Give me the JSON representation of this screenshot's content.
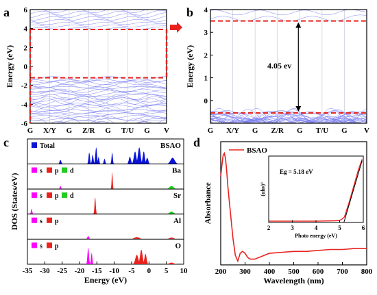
{
  "chart_data": [
    {
      "panel": "a",
      "type": "line",
      "ylabel": "Energy (eV)",
      "ylim": [
        -6,
        6
      ],
      "yticks": [
        -6,
        -4,
        -2,
        0,
        2,
        4,
        6
      ],
      "xticks": [
        "G",
        "X/Y",
        "G",
        "Z/R",
        "G",
        "T/U",
        "G",
        "V"
      ],
      "grid": false,
      "reference_lines": [
        {
          "name": "CBM",
          "y": 3.9,
          "color": "#e8231f",
          "style": "dashed"
        },
        {
          "name": "VBM",
          "y": -1.2,
          "color": "#e8231f",
          "style": "dashed"
        }
      ],
      "band_color": "#7b7ff2",
      "conduction_band_minimum": 3.9,
      "valence_band_maximum": -1.2,
      "arrow_color": "#e8231f"
    },
    {
      "panel": "b",
      "type": "line",
      "ylabel": "Energy (eV)",
      "ylim": [
        -1,
        4
      ],
      "yticks": [
        0,
        1,
        2,
        3,
        4
      ],
      "xticks": [
        "G",
        "X/Y",
        "G",
        "Z/R",
        "G",
        "T/U",
        "G",
        "V"
      ],
      "annotation": "4.05 ev",
      "reference_lines": [
        {
          "name": "CBM",
          "y": 3.5,
          "color": "#e8231f",
          "style": "dashed"
        },
        {
          "name": "VBM",
          "y": -0.55,
          "color": "#e8231f",
          "style": "dashed"
        }
      ],
      "band_color": "#7b7ff2",
      "band_gap": 4.05
    },
    {
      "panel": "c",
      "type": "area",
      "ylabel": "DOS (States/eV)",
      "xlabel": "Energy (eV)",
      "xlim": [
        -35,
        10
      ],
      "xticks": [
        -35,
        -30,
        -25,
        -20,
        -15,
        -10,
        -5,
        0,
        5,
        10
      ],
      "subpanels": [
        {
          "label": "BSAO",
          "legend": [
            {
              "name": "Total",
              "color": "#0a14d8"
            }
          ],
          "peaks": [
            {
              "x": -25.5,
              "h": 0.2,
              "w": 0.4,
              "c": "#0a14d8"
            },
            {
              "x": -17.2,
              "h": 0.55,
              "w": 0.35,
              "c": "#0a14d8"
            },
            {
              "x": -16.2,
              "h": 0.45,
              "w": 0.35,
              "c": "#0a14d8"
            },
            {
              "x": -15.2,
              "h": 0.8,
              "w": 0.4,
              "c": "#0a14d8"
            },
            {
              "x": -14.5,
              "h": 0.35,
              "w": 0.3,
              "c": "#0a14d8"
            },
            {
              "x": -12.8,
              "h": 0.25,
              "w": 0.35,
              "c": "#0a14d8"
            },
            {
              "x": -10.6,
              "h": 0.55,
              "w": 0.3,
              "c": "#0a14d8"
            },
            {
              "x": -5.5,
              "h": 0.35,
              "w": 0.5,
              "c": "#0a14d8"
            },
            {
              "x": -4.0,
              "h": 0.6,
              "w": 0.6,
              "c": "#0a14d8"
            },
            {
              "x": -2.8,
              "h": 0.8,
              "w": 0.6,
              "c": "#0a14d8"
            },
            {
              "x": -1.5,
              "h": 0.6,
              "w": 0.5,
              "c": "#0a14d8"
            },
            {
              "x": -0.5,
              "h": 0.3,
              "w": 0.5,
              "c": "#0a14d8"
            },
            {
              "x": 6.8,
              "h": 0.3,
              "w": 1.0,
              "c": "#0a14d8"
            }
          ]
        },
        {
          "label": "Ba",
          "legend": [
            {
              "name": "s",
              "color": "#ff00ff"
            },
            {
              "name": "p",
              "color": "#e8231f"
            },
            {
              "name": "d",
              "color": "#22cc22"
            }
          ],
          "peaks": [
            {
              "x": -25.5,
              "h": 0.15,
              "w": 0.3,
              "c": "#ff00ff"
            },
            {
              "x": -10.6,
              "h": 0.8,
              "w": 0.25,
              "c": "#e8231f"
            },
            {
              "x": 6.5,
              "h": 0.15,
              "w": 1.0,
              "c": "#22cc22"
            }
          ]
        },
        {
          "label": "Sr",
          "legend": [
            {
              "name": "s",
              "color": "#ff00ff"
            },
            {
              "name": "p",
              "color": "#e8231f"
            },
            {
              "name": "d",
              "color": "#22cc22"
            }
          ],
          "peaks": [
            {
              "x": -33.8,
              "h": 0.25,
              "w": 0.3,
              "c": "#ff00ff"
            },
            {
              "x": -15.5,
              "h": 0.8,
              "w": 0.3,
              "c": "#e8231f"
            },
            {
              "x": 6.5,
              "h": 0.12,
              "w": 1.0,
              "c": "#22cc22"
            }
          ]
        },
        {
          "label": "Al",
          "legend": [
            {
              "name": "s",
              "color": "#ff00ff"
            },
            {
              "name": "p",
              "color": "#e8231f"
            }
          ],
          "peaks": [
            {
              "x": -17.5,
              "h": 0.15,
              "w": 0.4,
              "c": "#ff00ff"
            },
            {
              "x": -3.5,
              "h": 0.1,
              "w": 1.2,
              "c": "#e8231f"
            },
            {
              "x": 6.5,
              "h": 0.08,
              "w": 1.0,
              "c": "#e8231f"
            }
          ]
        },
        {
          "label": "O",
          "legend": [
            {
              "name": "s",
              "color": "#ff00ff"
            },
            {
              "name": "p",
              "color": "#e8231f"
            }
          ],
          "peaks": [
            {
              "x": -17.5,
              "h": 0.8,
              "w": 0.35,
              "c": "#ff00ff"
            },
            {
              "x": -16.5,
              "h": 0.55,
              "w": 0.3,
              "c": "#ff00ff"
            },
            {
              "x": -3.5,
              "h": 0.45,
              "w": 0.7,
              "c": "#e8231f"
            },
            {
              "x": -2.2,
              "h": 0.7,
              "w": 0.6,
              "c": "#e8231f"
            },
            {
              "x": -1.0,
              "h": 0.5,
              "w": 0.5,
              "c": "#e8231f"
            },
            {
              "x": 6.5,
              "h": 0.08,
              "w": 1.0,
              "c": "#e8231f"
            }
          ]
        }
      ]
    },
    {
      "panel": "d",
      "type": "line",
      "xlabel": "Wavelength (nm)",
      "ylabel": "Absorbance",
      "xlim": [
        200,
        800
      ],
      "xticks": [
        200,
        300,
        400,
        500,
        600,
        700,
        800
      ],
      "series": [
        {
          "name": "BSAO",
          "color": "#e8231f",
          "x": [
            200,
            205,
            210,
            215,
            220,
            225,
            230,
            240,
            250,
            260,
            270,
            280,
            290,
            300,
            310,
            320,
            340,
            360,
            380,
            400,
            450,
            500,
            550,
            600,
            650,
            700,
            750,
            800
          ],
          "y": [
            0.44,
            0.5,
            0.55,
            0.56,
            0.53,
            0.46,
            0.38,
            0.25,
            0.12,
            0.03,
            0.0,
            0.04,
            0.05,
            0.04,
            0.02,
            0.01,
            0.01,
            0.02,
            0.03,
            0.04,
            0.045,
            0.05,
            0.05,
            0.055,
            0.06,
            0.06,
            0.065,
            0.065
          ]
        }
      ],
      "inset": {
        "xlabel": "Photo energy (eV)",
        "ylabel": "(αhν)²",
        "xlim": [
          2,
          6
        ],
        "xticks": [
          2,
          3,
          4,
          5,
          6
        ],
        "annotation": "Eg = 5.18 eV",
        "bandgap": 5.18,
        "x": [
          2.0,
          3.0,
          4.0,
          4.8,
          5.0,
          5.1,
          5.2,
          5.4,
          5.6,
          5.8,
          5.95
        ],
        "y": [
          0.02,
          0.02,
          0.02,
          0.025,
          0.03,
          0.05,
          0.08,
          0.3,
          0.55,
          0.8,
          0.95
        ]
      }
    }
  ]
}
